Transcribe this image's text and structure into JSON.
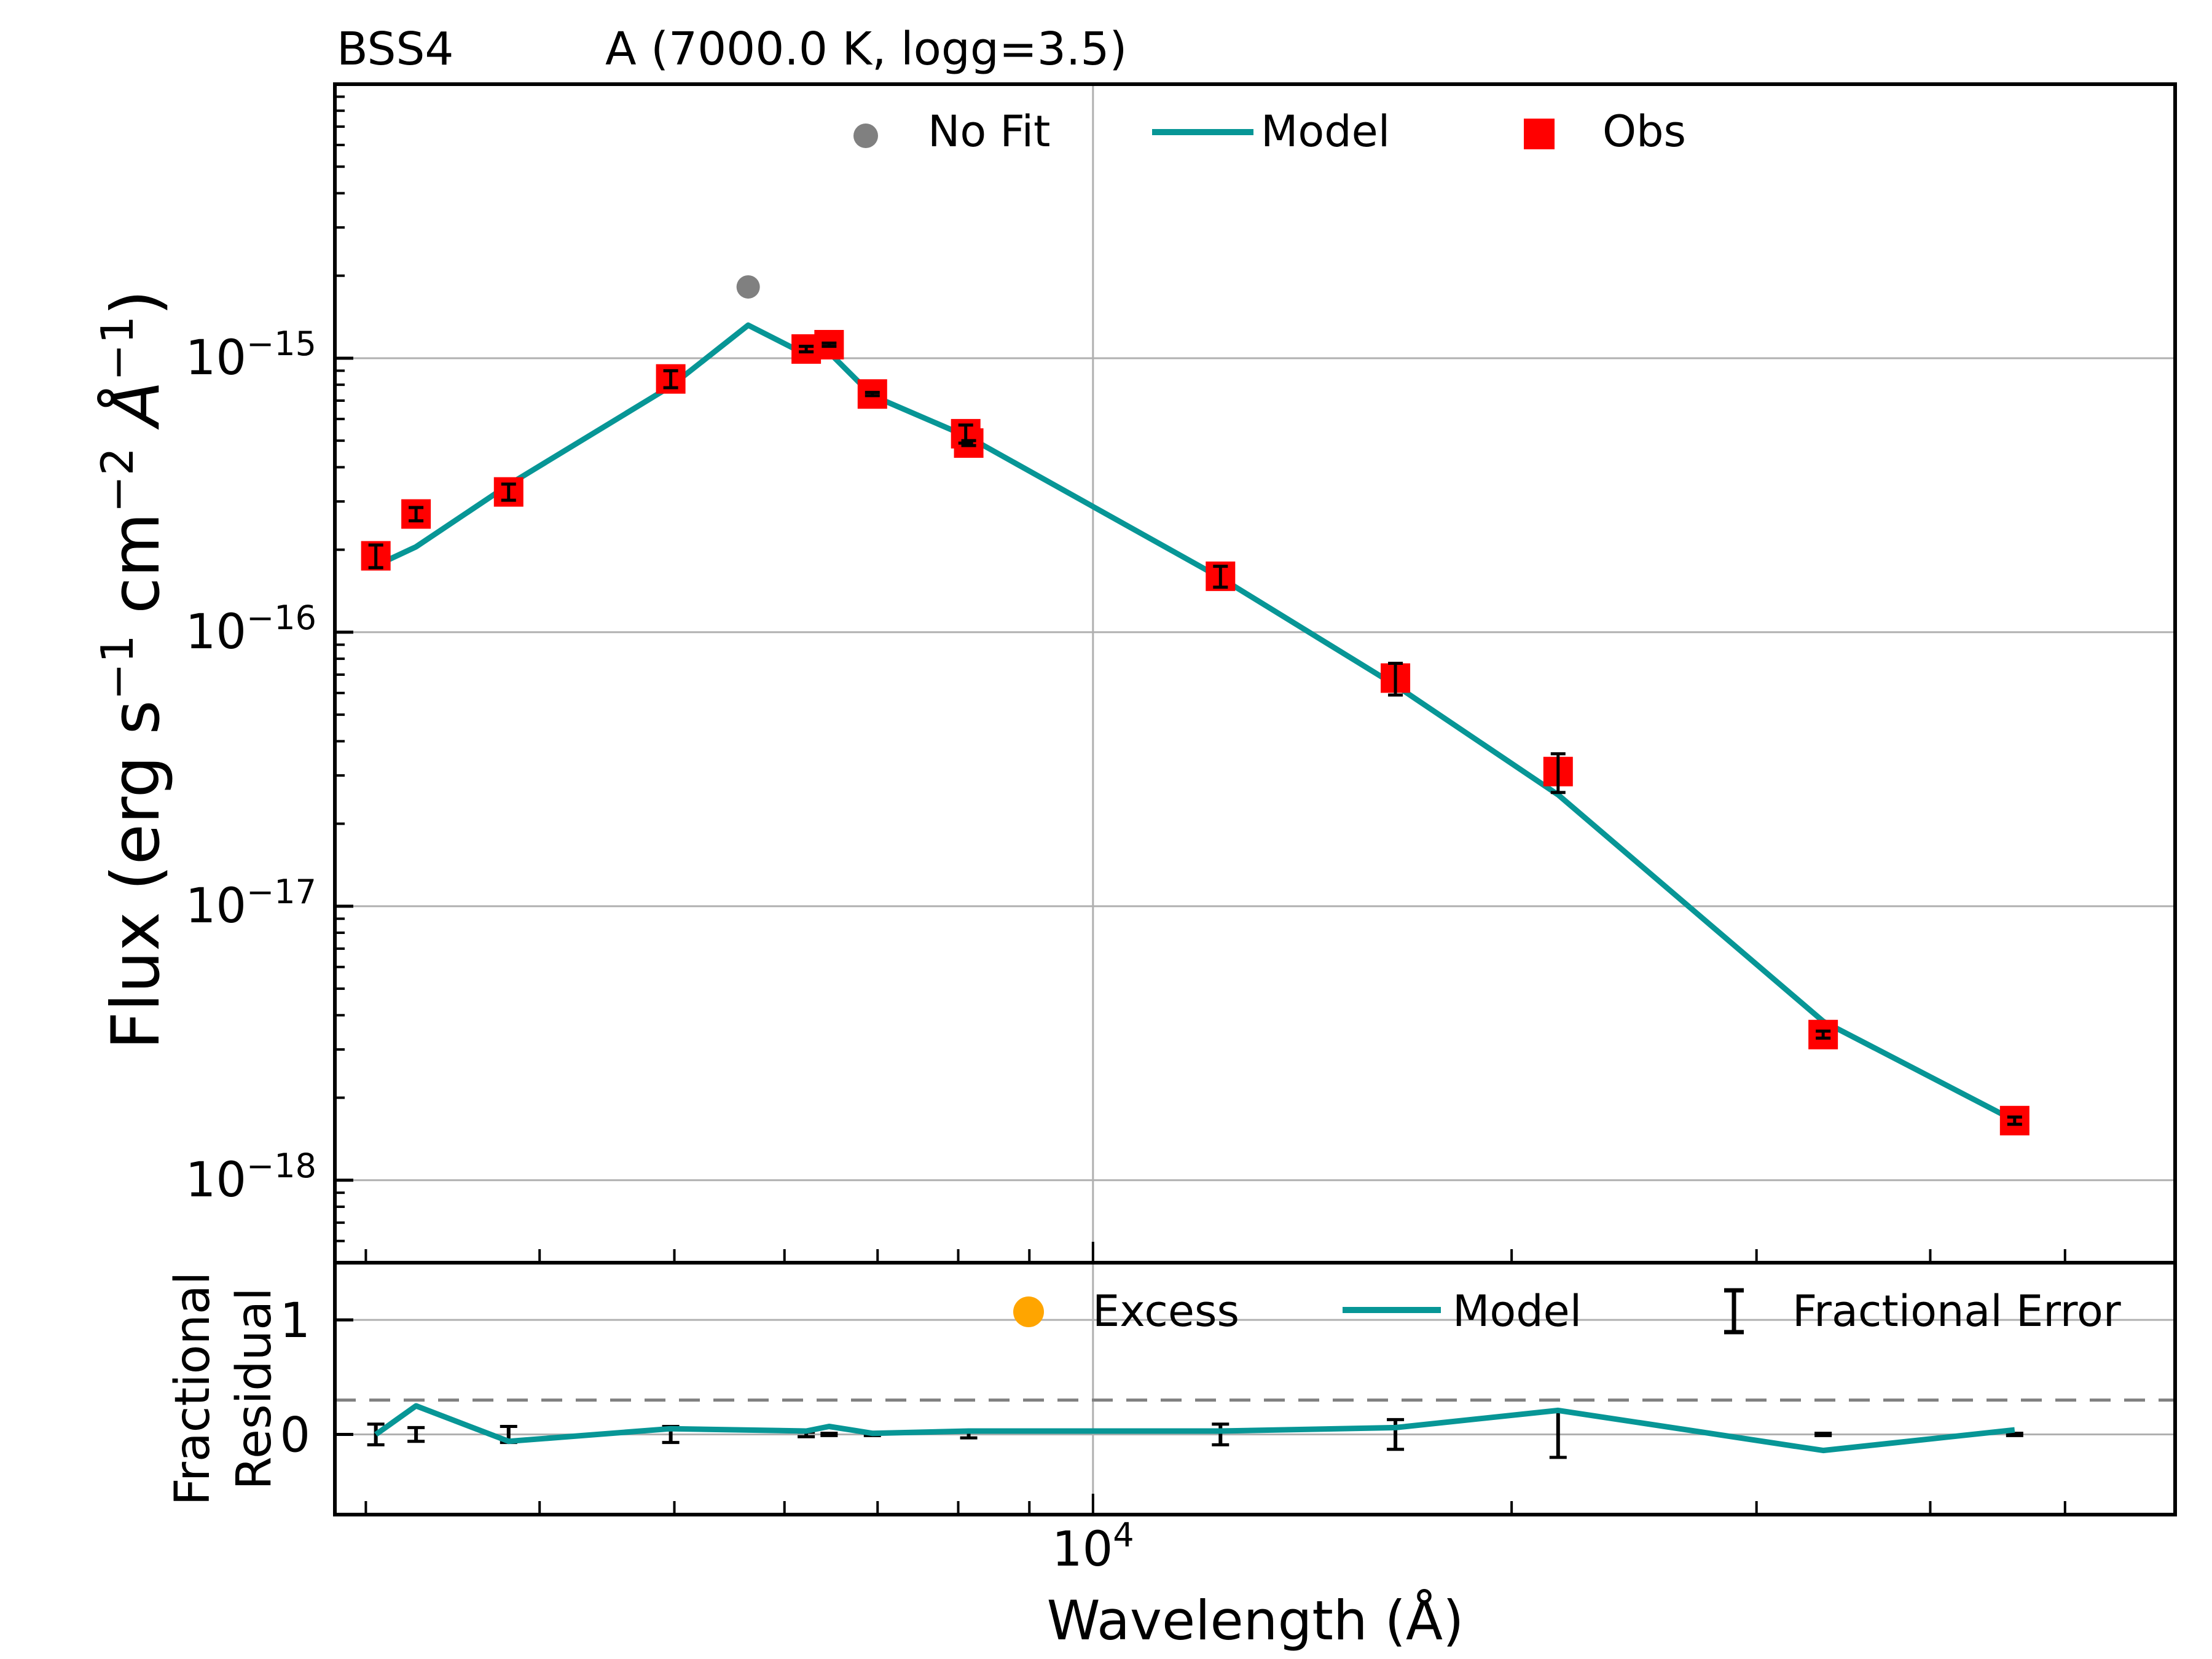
{
  "figure": {
    "object_name": "BSS4",
    "title_fit": "A (7000.0 K, logg=3.5)"
  },
  "colors": {
    "model": "#079696",
    "obs": "#ff0000",
    "nofit": "#808080",
    "excess": "#ffa500",
    "grid": "#b0b0b0",
    "threshold": "#808080"
  },
  "chart_data": [
    {
      "type": "scatter",
      "panel": "sed",
      "title": "BSS4       A (7000.0 K, logg=3.5)",
      "xlabel": "Wavelength (Å)",
      "ylabel": "Flux (erg s⁻¹ cm⁻² Å⁻¹)",
      "xscale": "log",
      "yscale": "log",
      "xlim": [
        2850,
        60000
      ],
      "ylim": [
        5e-19,
        1e-14
      ],
      "yticks": [
        {
          "value": 1e-15,
          "base": "10",
          "exp": "−15"
        },
        {
          "value": 1e-16,
          "base": "10",
          "exp": "−16"
        },
        {
          "value": 1e-17,
          "base": "10",
          "exp": "−17"
        },
        {
          "value": 1e-18,
          "base": "10",
          "exp": "−18"
        }
      ],
      "xtick_label": {
        "value": 10000,
        "base": "10",
        "exp": "4"
      },
      "legend": {
        "nofit": "No Fit",
        "model": "Model",
        "obs": "Obs"
      },
      "obs": {
        "wavelength": [
          3050,
          3260,
          3800,
          4970,
          6220,
          6460,
          6940,
          8100,
          8140,
          12350,
          16500,
          21600,
          33500,
          46000
        ],
        "flux": [
          1.9e-16,
          2.7e-16,
          3.25e-16,
          8.4e-16,
          1.08e-15,
          1.12e-15,
          7.4e-16,
          5.3e-16,
          4.9e-16,
          1.6e-16,
          6.8e-17,
          3.1e-17,
          3.4e-18,
          1.65e-18
        ],
        "error": [
          1.8e-17,
          1.5e-17,
          2.2e-17,
          6e-17,
          2.5e-17,
          1.5e-17,
          1e-17,
          4e-17,
          1e-17,
          1.4e-17,
          9e-18,
          5e-18,
          1e-19,
          5e-20
        ]
      },
      "model": {
        "wavelength": [
          3050,
          3260,
          3800,
          4970,
          5650,
          6220,
          6460,
          6940,
          8140,
          12350,
          16500,
          21600,
          33500,
          46000
        ],
        "flux": [
          1.75e-16,
          2.05e-16,
          3.45e-16,
          7.9e-16,
          1.32e-15,
          1.03e-15,
          1.05e-15,
          7.3e-16,
          5.15e-16,
          1.58e-16,
          6.4e-17,
          2.55e-17,
          3.8e-18,
          1.65e-18
        ]
      },
      "nofit": {
        "wavelength": [
          5650
        ],
        "flux": [
          1.82e-15
        ]
      }
    },
    {
      "type": "line",
      "panel": "residual",
      "ylabel": "Fractional Residual",
      "ylabel_lines": [
        "Fractional",
        "Residual"
      ],
      "xlabel": "Wavelength (Å)",
      "xscale": "log",
      "xlim": [
        2850,
        60000
      ],
      "ylim": [
        -0.7,
        1.5
      ],
      "yticks": [
        0,
        1
      ],
      "threshold": 0.3,
      "legend": {
        "excess": "Excess",
        "model": "Model",
        "error": "Fractional Error"
      },
      "residual": {
        "wavelength": [
          3050,
          3260,
          3800,
          4970,
          6220,
          6460,
          6940,
          8140,
          12350,
          16500,
          21600,
          33500,
          46000
        ],
        "value": [
          0.0,
          0.25,
          -0.06,
          0.05,
          0.03,
          0.07,
          0.01,
          0.03,
          0.03,
          0.06,
          0.21,
          -0.14,
          0.04
        ],
        "error": [
          0.09,
          0.06,
          0.07,
          0.07,
          0.02,
          0.01,
          0.01,
          0.03,
          0.09,
          0.13,
          0.2,
          0.01,
          0.01
        ]
      }
    }
  ]
}
